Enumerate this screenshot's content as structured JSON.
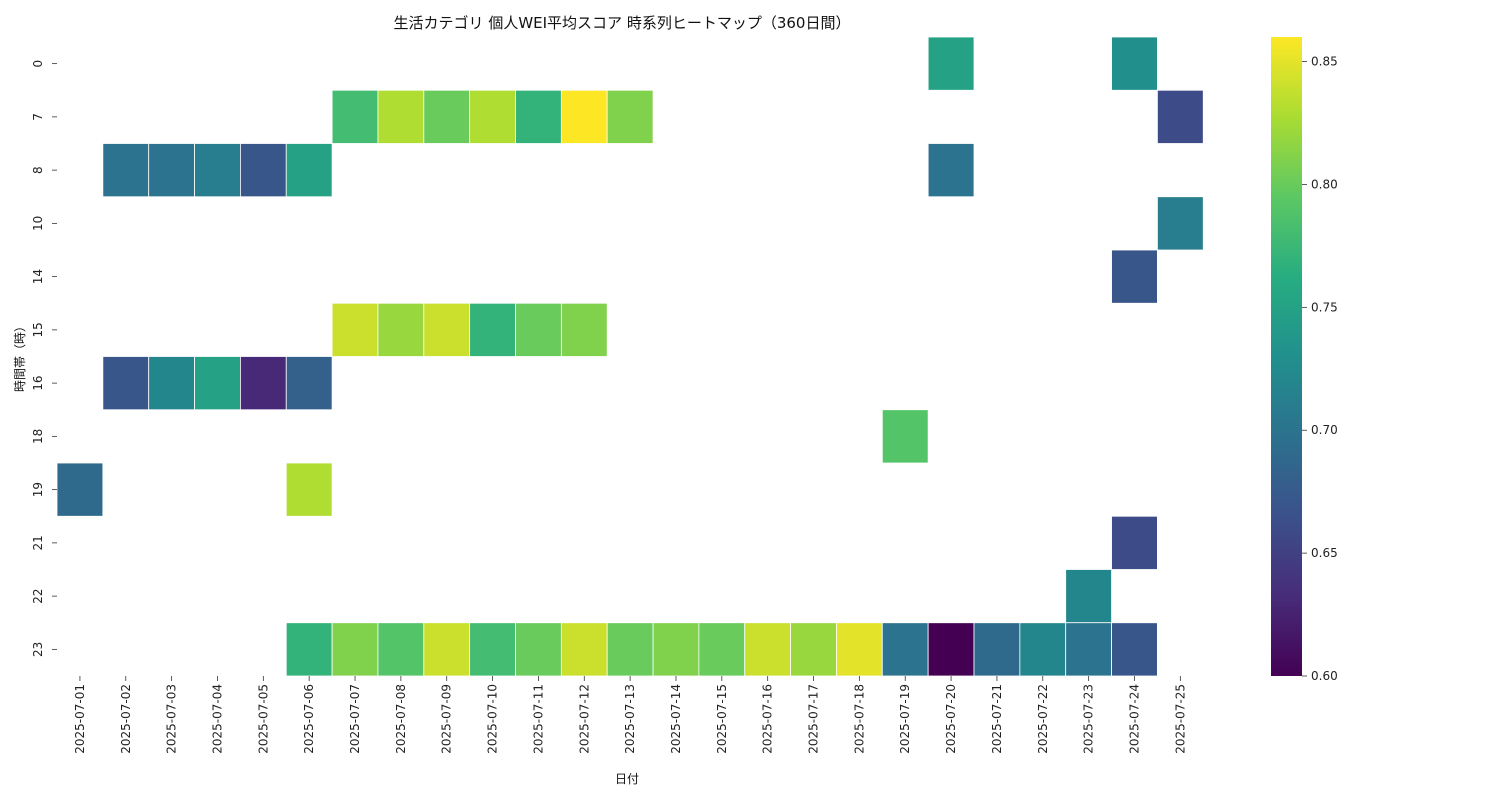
{
  "chart_data": {
    "type": "heatmap",
    "title": "生活カテゴリ 個人WEI平均スコア 時系列ヒートマップ（360日間）",
    "xlabel": "日付",
    "ylabel": "時間帯（時）",
    "x_categories": [
      "2025-07-01",
      "2025-07-02",
      "2025-07-03",
      "2025-07-04",
      "2025-07-05",
      "2025-07-06",
      "2025-07-07",
      "2025-07-08",
      "2025-07-09",
      "2025-07-10",
      "2025-07-11",
      "2025-07-12",
      "2025-07-13",
      "2025-07-14",
      "2025-07-15",
      "2025-07-16",
      "2025-07-17",
      "2025-07-18",
      "2025-07-19",
      "2025-07-20",
      "2025-07-21",
      "2025-07-22",
      "2025-07-23",
      "2025-07-24",
      "2025-07-25"
    ],
    "y_categories": [
      "0",
      "7",
      "8",
      "10",
      "14",
      "15",
      "16",
      "18",
      "19",
      "21",
      "22",
      "23"
    ],
    "colorbar": {
      "colormap": "viridis",
      "vmin": 0.6,
      "vmax": 0.86,
      "ticks": [
        "0.60",
        "0.65",
        "0.70",
        "0.75",
        "0.80",
        "0.85"
      ]
    },
    "cells": [
      {
        "x": "2025-07-20",
        "y": "0",
        "v": 0.75
      },
      {
        "x": "2025-07-24",
        "y": "0",
        "v": 0.73
      },
      {
        "x": "2025-07-07",
        "y": "7",
        "v": 0.78
      },
      {
        "x": "2025-07-08",
        "y": "7",
        "v": 0.83
      },
      {
        "x": "2025-07-09",
        "y": "7",
        "v": 0.8
      },
      {
        "x": "2025-07-10",
        "y": "7",
        "v": 0.83
      },
      {
        "x": "2025-07-11",
        "y": "7",
        "v": 0.77
      },
      {
        "x": "2025-07-12",
        "y": "7",
        "v": 0.86
      },
      {
        "x": "2025-07-13",
        "y": "7",
        "v": 0.81
      },
      {
        "x": "2025-07-25",
        "y": "7",
        "v": 0.66
      },
      {
        "x": "2025-07-02",
        "y": "8",
        "v": 0.7
      },
      {
        "x": "2025-07-03",
        "y": "8",
        "v": 0.7
      },
      {
        "x": "2025-07-04",
        "y": "8",
        "v": 0.71
      },
      {
        "x": "2025-07-05",
        "y": "8",
        "v": 0.67
      },
      {
        "x": "2025-07-06",
        "y": "8",
        "v": 0.75
      },
      {
        "x": "2025-07-20",
        "y": "8",
        "v": 0.7
      },
      {
        "x": "2025-07-25",
        "y": "10",
        "v": 0.71
      },
      {
        "x": "2025-07-24",
        "y": "14",
        "v": 0.67
      },
      {
        "x": "2025-07-07",
        "y": "15",
        "v": 0.84
      },
      {
        "x": "2025-07-08",
        "y": "15",
        "v": 0.82
      },
      {
        "x": "2025-07-09",
        "y": "15",
        "v": 0.84
      },
      {
        "x": "2025-07-10",
        "y": "15",
        "v": 0.77
      },
      {
        "x": "2025-07-11",
        "y": "15",
        "v": 0.8
      },
      {
        "x": "2025-07-12",
        "y": "15",
        "v": 0.81
      },
      {
        "x": "2025-07-02",
        "y": "16",
        "v": 0.67
      },
      {
        "x": "2025-07-03",
        "y": "16",
        "v": 0.72
      },
      {
        "x": "2025-07-04",
        "y": "16",
        "v": 0.75
      },
      {
        "x": "2025-07-05",
        "y": "16",
        "v": 0.63
      },
      {
        "x": "2025-07-06",
        "y": "16",
        "v": 0.68
      },
      {
        "x": "2025-07-19",
        "y": "18",
        "v": 0.79
      },
      {
        "x": "2025-07-01",
        "y": "19",
        "v": 0.69
      },
      {
        "x": "2025-07-06",
        "y": "19",
        "v": 0.83
      },
      {
        "x": "2025-07-24",
        "y": "21",
        "v": 0.66
      },
      {
        "x": "2025-07-23",
        "y": "22",
        "v": 0.72
      },
      {
        "x": "2025-07-06",
        "y": "23",
        "v": 0.77
      },
      {
        "x": "2025-07-07",
        "y": "23",
        "v": 0.81
      },
      {
        "x": "2025-07-08",
        "y": "23",
        "v": 0.79
      },
      {
        "x": "2025-07-09",
        "y": "23",
        "v": 0.84
      },
      {
        "x": "2025-07-10",
        "y": "23",
        "v": 0.78
      },
      {
        "x": "2025-07-11",
        "y": "23",
        "v": 0.8
      },
      {
        "x": "2025-07-12",
        "y": "23",
        "v": 0.84
      },
      {
        "x": "2025-07-13",
        "y": "23",
        "v": 0.8
      },
      {
        "x": "2025-07-14",
        "y": "23",
        "v": 0.81
      },
      {
        "x": "2025-07-15",
        "y": "23",
        "v": 0.8
      },
      {
        "x": "2025-07-16",
        "y": "23",
        "v": 0.84
      },
      {
        "x": "2025-07-17",
        "y": "23",
        "v": 0.82
      },
      {
        "x": "2025-07-18",
        "y": "23",
        "v": 0.85
      },
      {
        "x": "2025-07-19",
        "y": "23",
        "v": 0.7
      },
      {
        "x": "2025-07-20",
        "y": "23",
        "v": 0.6
      },
      {
        "x": "2025-07-21",
        "y": "23",
        "v": 0.69
      },
      {
        "x": "2025-07-22",
        "y": "23",
        "v": 0.72
      },
      {
        "x": "2025-07-23",
        "y": "23",
        "v": 0.7
      },
      {
        "x": "2025-07-24",
        "y": "23",
        "v": 0.67
      }
    ]
  }
}
